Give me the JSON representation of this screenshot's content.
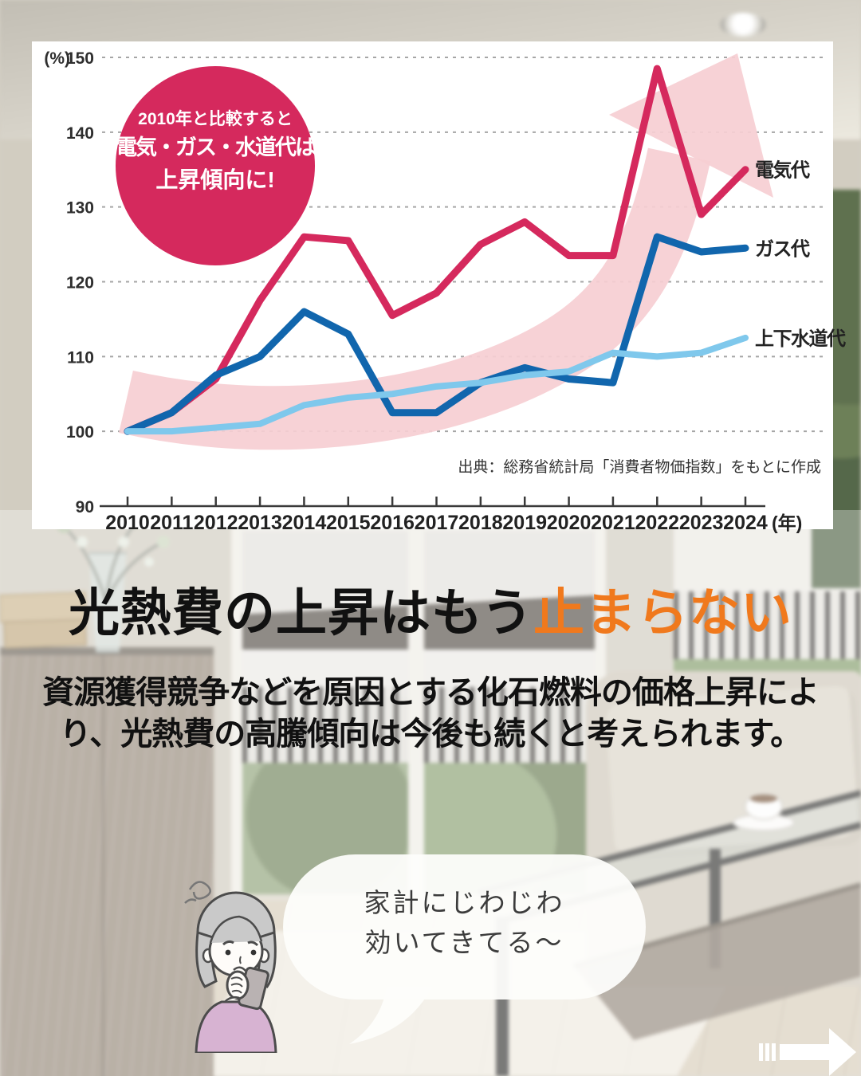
{
  "badge": {
    "line1": "2010年と比較すると",
    "line2": "電気・ガス・水道代は",
    "line3": "上昇傾向に!"
  },
  "chart_data": {
    "type": "line",
    "x": [
      2010,
      2011,
      2012,
      2013,
      2014,
      2015,
      2016,
      2017,
      2018,
      2019,
      2020,
      2021,
      2022,
      2023,
      2024
    ],
    "series": [
      {
        "name": "電気代",
        "color": "#d5295d",
        "width": 9,
        "values": [
          100,
          102.5,
          107,
          117.5,
          126,
          125.5,
          115.5,
          118.5,
          125,
          128,
          123.5,
          123.5,
          148.5,
          129,
          135
        ]
      },
      {
        "name": "ガス代",
        "color": "#1166ad",
        "width": 9,
        "values": [
          100,
          102.5,
          107.5,
          110,
          116,
          113,
          102.5,
          102.5,
          106.5,
          108.5,
          107,
          106.5,
          126,
          124,
          124.5
        ]
      },
      {
        "name": "上下水道代",
        "color": "#7fc8ec",
        "width": 8,
        "values": [
          100,
          100,
          100.5,
          101,
          103.5,
          104.5,
          105,
          106,
          106.5,
          107.5,
          108,
          110.5,
          110,
          110.5,
          112.5
        ]
      }
    ],
    "ylim": [
      90,
      150
    ],
    "yticks": [
      90,
      100,
      110,
      120,
      130,
      140,
      150
    ],
    "y_unit_label": "(%)",
    "x_unit_label": "(年)",
    "grid": "dashed horizontal",
    "legend_position": "line-end labels right",
    "source": "出典：総務省統計局「消費者物価指数」をもとに作成"
  },
  "headline": {
    "black": "光熱費の上昇はもう",
    "orange": "止まらない"
  },
  "body": {
    "line1": "資源獲得競争などを原因とする化石燃料の価格上昇によ",
    "line2": "り、光熱費の高騰傾向は今後も続くと考えられます。"
  },
  "speech_bubble": {
    "line1": "家計にじわじわ",
    "line2": "効いてきてる〜"
  },
  "colors": {
    "badge_red": "#d5295d",
    "arrow_pink": "#f6ced2",
    "headline_orange": "#f0791d",
    "axis_text": "#2e2e2e"
  }
}
